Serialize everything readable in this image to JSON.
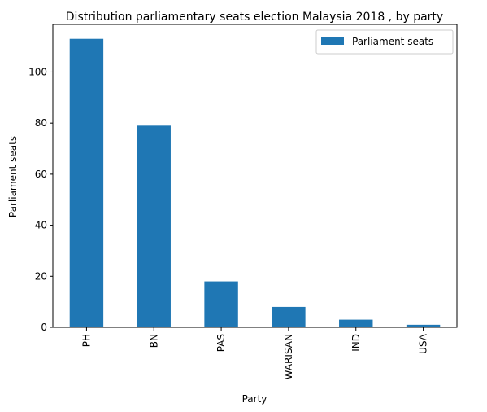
{
  "chart_data": {
    "type": "bar",
    "title": "Distribution parliamentary seats election Malaysia 2018 , by party",
    "xlabel": "Party",
    "ylabel": "Parliament seats",
    "categories": [
      "PH",
      "BN",
      "PAS",
      "WARISAN",
      "IND",
      "USA"
    ],
    "series": [
      {
        "name": "Parliament seats",
        "values": [
          113,
          79,
          18,
          8,
          3,
          1
        ],
        "color": "#1f77b4"
      }
    ],
    "ylim": [
      0,
      118.65
    ],
    "yticks": [
      0,
      20,
      40,
      60,
      80,
      100
    ],
    "grid": false,
    "legend_position": "top-right"
  }
}
